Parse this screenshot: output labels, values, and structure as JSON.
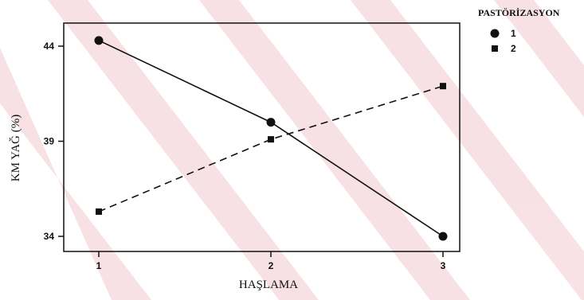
{
  "chart_data": {
    "type": "line",
    "xlabel": "HAŞLAMA",
    "ylabel": "KM YAĞ (%)",
    "x_ticks": [
      "1",
      "2",
      "3"
    ],
    "y_ticks": [
      "34",
      "39",
      "44"
    ],
    "xlim": [
      1,
      3
    ],
    "ylim": [
      34,
      44
    ],
    "grid": false,
    "legend": {
      "title": "PASTÖRİZASYON",
      "placement": "top-right outside"
    },
    "series": [
      {
        "name": "1",
        "marker": "circle",
        "line_style": "solid",
        "color": "#111111",
        "x": [
          1,
          2,
          3
        ],
        "y": [
          44.3,
          40.0,
          34.0
        ]
      },
      {
        "name": "2",
        "marker": "square",
        "line_style": "dashed",
        "color": "#111111",
        "x": [
          1,
          2,
          3
        ],
        "y": [
          35.3,
          39.1,
          41.9
        ]
      }
    ]
  }
}
